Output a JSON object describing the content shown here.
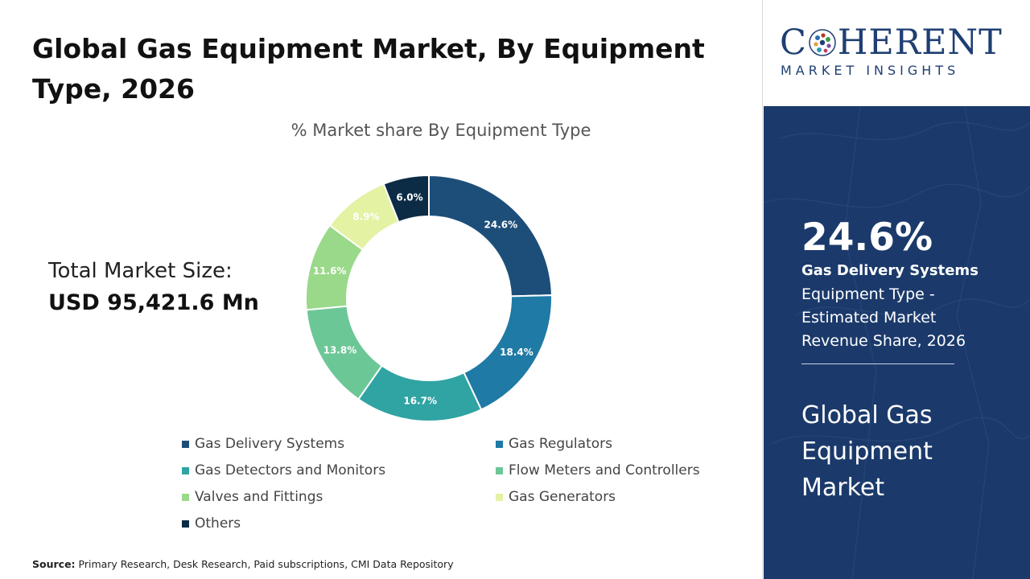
{
  "title": "Global Gas Equipment Market, By Equipment Type, 2026",
  "total_market": {
    "label": "Total Market Size:",
    "value": "USD 95,421.6 Mn"
  },
  "source": {
    "label": "Source:",
    "text": "Primary Research, Desk Research, Paid subscriptions, CMI Data Repository"
  },
  "logo": {
    "main": "COHERENT",
    "main_lead": "C",
    "main_rest": "HERENT",
    "sub": "MARKET INSIGHTS"
  },
  "highlight": {
    "value": "24.6%",
    "segment": "Gas Delivery Systems",
    "description": "Equipment Type - Estimated Market Revenue Share, 2026",
    "market_name": "Global Gas Equipment Market"
  },
  "colors": {
    "panel_bg": "#1b3a6b",
    "brand": "#1e3f73"
  },
  "chart_data": {
    "type": "pie",
    "subtitle": "% Market share By Equipment Type",
    "donut": true,
    "labels": [
      "Gas Delivery Systems",
      "Gas Regulators",
      "Gas Detectors and Monitors",
      "Flow Meters and Controllers",
      "Valves and Fittings",
      "Gas Generators",
      "Others"
    ],
    "values": [
      24.6,
      18.4,
      16.7,
      13.8,
      11.6,
      8.9,
      6.0
    ],
    "value_labels": [
      "24.6%",
      "18.4%",
      "16.7%",
      "13.8%",
      "11.6%",
      "8.9%",
      "6.0%"
    ],
    "colors": [
      "#1d4e79",
      "#1f7aa5",
      "#30a3a3",
      "#6cc796",
      "#9ad98a",
      "#e3f2a3",
      "#0c2b45"
    ],
    "label_colors": [
      "#ffffff",
      "#ffffff",
      "#ffffff",
      "#ffffff",
      "#ffffff",
      "#ffffff",
      "#ffffff"
    ],
    "legend_position": "bottom"
  }
}
